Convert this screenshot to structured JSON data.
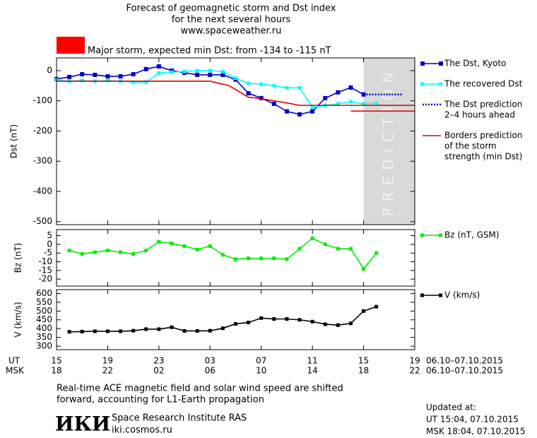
{
  "title": [
    "Forecast of geomagnetic storm and Dst index",
    "for the next several hours",
    "www.spaceweather.ru"
  ],
  "storm": {
    "color": "#ff0000",
    "label": "Major storm, expected min Dst: from -134 to -115 nT"
  },
  "x_axis": {
    "xlim": [
      0,
      28
    ],
    "xticks": [
      {
        "value": 0,
        "label": "15"
      },
      {
        "value": 4,
        "label": "19"
      },
      {
        "value": 8,
        "label": "23"
      },
      {
        "value": 12,
        "label": "03"
      },
      {
        "value": 16,
        "label": "07"
      },
      {
        "value": 20,
        "label": "11"
      },
      {
        "value": 24,
        "label": "15"
      },
      {
        "value": 28,
        "label": "19"
      }
    ],
    "msk_labels": [
      "18",
      "22",
      "02",
      "06",
      "10",
      "14",
      "18",
      "22"
    ],
    "ut_title": "UT",
    "msk_title": "MSK",
    "date": "06.10–07.10.2015"
  },
  "chart_data": [
    {
      "type": "line",
      "ylabel": "Dst (nT)",
      "ylim": [
        -510,
        42
      ],
      "yticks": [
        0,
        -100,
        -200,
        -300,
        -400,
        -500
      ],
      "prediction_band": {
        "xlim": [
          24,
          28
        ],
        "label": "PREDICTION",
        "color": "#d9d9d9"
      },
      "series": [
        {
          "name": "The Dst, Kyoto",
          "color": "#0000cc",
          "marker": "big-square",
          "x": [
            0,
            1,
            2,
            3,
            4,
            5,
            6,
            7,
            8,
            9,
            10,
            11,
            12,
            13,
            14,
            15,
            16,
            17,
            18,
            19,
            20,
            21,
            22,
            23,
            24
          ],
          "values": [
            -28,
            -21,
            -12,
            -14,
            -19,
            -19,
            -12,
            5,
            14,
            0,
            -7,
            -14,
            -14,
            -14,
            -30,
            -75,
            -91,
            -110,
            -135,
            -145,
            -135,
            -91,
            -72,
            -56,
            -79
          ]
        },
        {
          "name": "The recovered Dst",
          "color": "#00ffff",
          "marker": "square",
          "x": [
            0,
            1,
            2,
            3,
            4,
            5,
            6,
            7,
            8,
            9,
            10,
            11,
            12,
            13,
            14,
            15,
            16,
            17,
            18,
            19,
            20,
            21,
            22,
            23,
            24,
            25
          ],
          "values": [
            -30,
            -35,
            -33,
            -35,
            -33,
            -35,
            -38,
            -38,
            -8,
            -5,
            -3,
            0,
            0,
            -3,
            -25,
            -42,
            -45,
            -50,
            -57,
            -57,
            -122,
            -115,
            -110,
            -103,
            -110,
            -108
          ]
        },
        {
          "name": [
            "The Dst prediction",
            "2–4 hours ahead"
          ],
          "color": "#0000cc",
          "style": "dotted",
          "x": [
            24,
            27
          ],
          "values": [
            -79,
            -79
          ]
        },
        {
          "name": [
            "Borders prediction",
            "of the storm",
            "strength (min Dst)"
          ],
          "color": "#dd0000",
          "x": [
            0,
            12,
            13,
            13.5,
            15,
            16,
            18,
            19,
            28
          ],
          "values": [
            -35,
            -35,
            -45,
            -50,
            -88,
            -93,
            -107,
            -115,
            -115
          ]
        },
        {
          "color": "#dd0000",
          "x": [
            23,
            28
          ],
          "values": [
            -134,
            -134
          ]
        }
      ]
    },
    {
      "type": "line",
      "ylabel": "Bz (nT)",
      "ylim": [
        -24,
        8.5
      ],
      "yticks": [
        5,
        0,
        -5,
        -10,
        -15,
        -20
      ],
      "series": [
        {
          "name": "Bz (nT, GSM)",
          "color": "#00ee00",
          "marker": "square",
          "x": [
            1,
            2,
            3,
            4,
            5,
            6,
            7,
            8,
            9,
            10,
            11,
            12,
            13,
            14,
            15,
            16,
            17,
            18,
            19,
            20,
            21,
            22,
            23,
            24,
            25
          ],
          "values": [
            -3.5,
            -5.5,
            -4.5,
            -3.5,
            -4.5,
            -5.5,
            -3.5,
            1.5,
            0.5,
            -1,
            -3,
            -1,
            -6,
            -8.5,
            -8,
            -8,
            -8,
            -8.5,
            -2.5,
            3.5,
            0,
            -2.5,
            -2.5,
            -14,
            -5
          ]
        }
      ]
    },
    {
      "type": "line",
      "ylabel": "V (km/s)",
      "ylim": [
        280,
        622
      ],
      "yticks": [
        600,
        550,
        500,
        450,
        400,
        350,
        300
      ],
      "series": [
        {
          "name": "V (km/s)",
          "color": "#000000",
          "marker": "square",
          "x": [
            1,
            2,
            3,
            4,
            5,
            6,
            7,
            8,
            9,
            10,
            11,
            12,
            13,
            14,
            15,
            16,
            17,
            18,
            19,
            20,
            21,
            22,
            23,
            24,
            25
          ],
          "values": [
            382,
            383,
            385,
            385,
            385,
            388,
            397,
            397,
            408,
            387,
            387,
            388,
            402,
            427,
            435,
            460,
            455,
            455,
            450,
            440,
            425,
            420,
            430,
            500,
            525
          ]
        }
      ]
    }
  ],
  "footer": {
    "note": [
      "Real-time ACE magnetic field and solar wind speed are shifted",
      "forward, accounting for L1-Earth propagation"
    ],
    "logo": "ИКИ",
    "institute": "Space Research Institute RAS",
    "site": "iki.cosmos.ru",
    "updated": [
      "Updated at:",
      "UT  15:04, 07.10.2015",
      "MSK 18:04, 07.10.2015"
    ]
  }
}
